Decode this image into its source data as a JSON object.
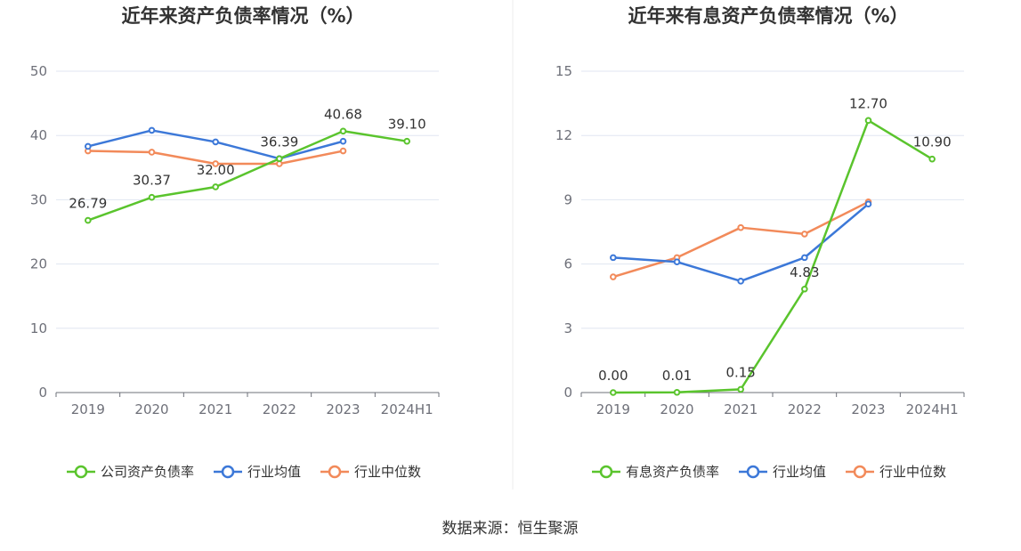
{
  "source": "数据来源：恒生聚源",
  "chart_data": [
    {
      "type": "line",
      "title": "近年来资产负债率情况（%）",
      "categories": [
        "2019",
        "2020",
        "2021",
        "2022",
        "2023",
        "2024H1"
      ],
      "ylim": [
        0,
        50
      ],
      "yticks": [
        0,
        10,
        20,
        30,
        40,
        50
      ],
      "series": [
        {
          "name": "公司资产负债率",
          "color": "#5ac42d",
          "values": [
            26.79,
            30.37,
            32.0,
            36.39,
            40.68,
            39.1
          ],
          "labels": [
            "26.79",
            "30.37",
            "32.00",
            "36.39",
            "40.68",
            "39.10"
          ]
        },
        {
          "name": "行业均值",
          "color": "#3c78d8",
          "values": [
            38.3,
            40.8,
            39.0,
            36.4,
            39.1,
            null
          ]
        },
        {
          "name": "行业中位数",
          "color": "#f28a5a",
          "values": [
            37.6,
            37.4,
            35.6,
            35.6,
            37.6,
            null
          ]
        }
      ]
    },
    {
      "type": "line",
      "title": "近年来有息资产负债率情况（%）",
      "categories": [
        "2019",
        "2020",
        "2021",
        "2022",
        "2023",
        "2024H1"
      ],
      "ylim": [
        0,
        15
      ],
      "yticks": [
        0,
        3,
        6,
        9,
        12,
        15
      ],
      "series": [
        {
          "name": "有息资产负债率",
          "color": "#5ac42d",
          "values": [
            0.0,
            0.01,
            0.15,
            4.83,
            12.7,
            10.9
          ],
          "labels": [
            "0.00",
            "0.01",
            "0.15",
            "4.83",
            "12.70",
            "10.90"
          ]
        },
        {
          "name": "行业均值",
          "color": "#3c78d8",
          "values": [
            6.3,
            6.1,
            5.2,
            6.3,
            8.8,
            null
          ]
        },
        {
          "name": "行业中位数",
          "color": "#f28a5a",
          "values": [
            5.4,
            6.3,
            7.7,
            7.4,
            8.9,
            null
          ]
        }
      ]
    }
  ]
}
